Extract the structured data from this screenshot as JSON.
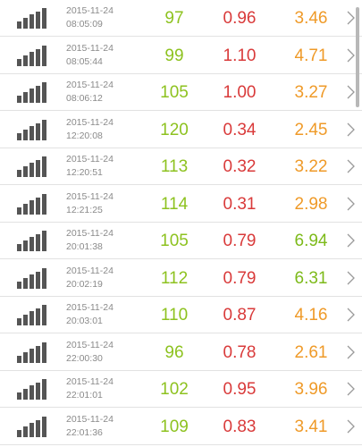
{
  "rows": [
    {
      "date": "2015-11-24",
      "time": "08:05:09",
      "v1": "97",
      "v2": "0.96",
      "v3": "3.46",
      "v3_color": "orange"
    },
    {
      "date": "2015-11-24",
      "time": "08:05:44",
      "v1": "99",
      "v2": "1.10",
      "v3": "4.71",
      "v3_color": "orange"
    },
    {
      "date": "2015-11-24",
      "time": "08:06:12",
      "v1": "105",
      "v2": "1.00",
      "v3": "3.27",
      "v3_color": "orange"
    },
    {
      "date": "2015-11-24",
      "time": "12:20:08",
      "v1": "120",
      "v2": "0.34",
      "v3": "2.45",
      "v3_color": "orange"
    },
    {
      "date": "2015-11-24",
      "time": "12:20:51",
      "v1": "113",
      "v2": "0.32",
      "v3": "3.22",
      "v3_color": "orange"
    },
    {
      "date": "2015-11-24",
      "time": "12:21:25",
      "v1": "114",
      "v2": "0.31",
      "v3": "2.98",
      "v3_color": "orange"
    },
    {
      "date": "2015-11-24",
      "time": "20:01:38",
      "v1": "105",
      "v2": "0.79",
      "v3": "6.94",
      "v3_color": "green"
    },
    {
      "date": "2015-11-24",
      "time": "20:02:19",
      "v1": "112",
      "v2": "0.79",
      "v3": "6.31",
      "v3_color": "green"
    },
    {
      "date": "2015-11-24",
      "time": "20:03:01",
      "v1": "110",
      "v2": "0.87",
      "v3": "4.16",
      "v3_color": "orange"
    },
    {
      "date": "2015-11-24",
      "time": "22:00:30",
      "v1": "96",
      "v2": "0.78",
      "v3": "2.61",
      "v3_color": "orange"
    },
    {
      "date": "2015-11-24",
      "time": "22:01:01",
      "v1": "102",
      "v2": "0.95",
      "v3": "3.96",
      "v3_color": "orange"
    },
    {
      "date": "2015-11-24",
      "time": "22:01:36",
      "v1": "109",
      "v2": "0.83",
      "v3": "3.41",
      "v3_color": "orange"
    }
  ],
  "colors": {
    "value1": "#8dc21f",
    "value2": "#d93a3a",
    "value3_orange": "#ef9a28",
    "value3_green": "#7dba1a",
    "icon": "#555555",
    "timestamp": "#8a8a8a"
  },
  "icons": {
    "row_icon": "signal-bars-icon",
    "row_chevron": "chevron-right-icon"
  }
}
